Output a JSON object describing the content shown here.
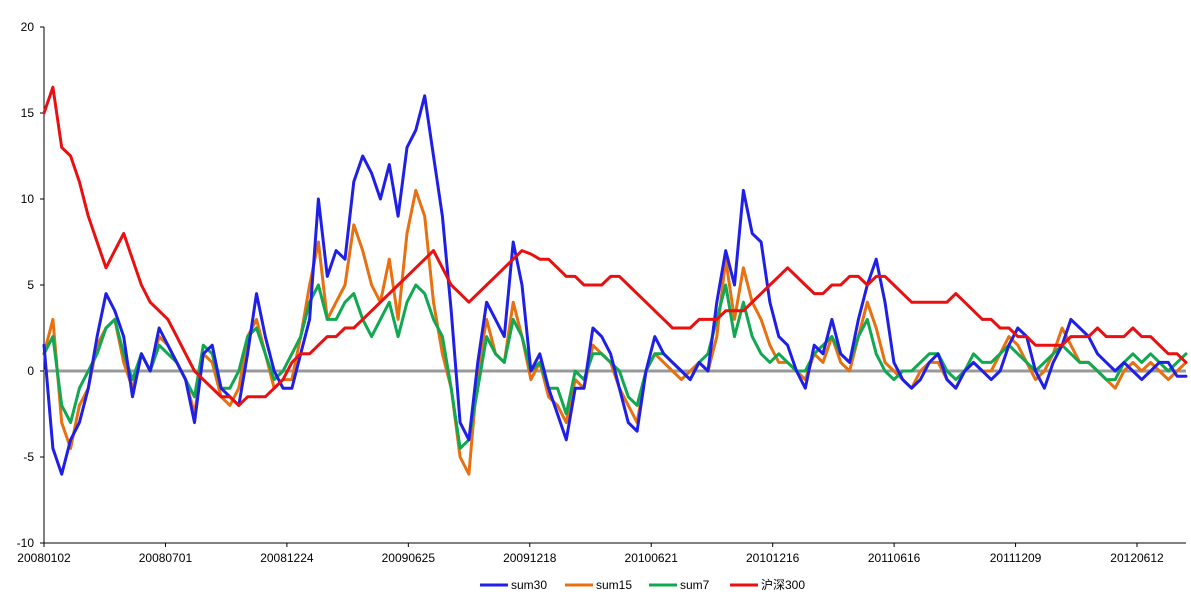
{
  "chart_data": {
    "type": "line",
    "title": "",
    "xlabel": "",
    "ylabel": "",
    "ylim": [
      -10,
      20
    ],
    "yticks": [
      -10,
      -5,
      0,
      5,
      10,
      15,
      20
    ],
    "x_tick_labels": [
      "20080102",
      "20080701",
      "20081224",
      "20090625",
      "20091218",
      "20100621",
      "20101216",
      "20110616",
      "20111209",
      "20120612"
    ],
    "grid": false,
    "legend_position": "bottom",
    "zero_line_color": "#999999",
    "series": [
      {
        "name": "sum30",
        "color": "#1f1fe8",
        "values": [
          1.5,
          -4.5,
          -6.0,
          -4.0,
          -3.0,
          -1.0,
          2.0,
          4.5,
          3.5,
          2.0,
          -1.5,
          1.0,
          0.0,
          2.5,
          1.5,
          0.5,
          -0.5,
          -3.0,
          1.0,
          1.5,
          -1.0,
          -1.5,
          -2.0,
          1.0,
          4.5,
          2.0,
          0.0,
          -1.0,
          -1.0,
          1.0,
          3.0,
          10.0,
          5.5,
          7.0,
          6.5,
          11.0,
          12.5,
          11.5,
          10.0,
          12.0,
          9.0,
          13.0,
          14.0,
          16.0,
          12.5,
          9.0,
          3.5,
          -3.0,
          -4.0,
          0.5,
          4.0,
          3.0,
          2.0,
          7.5,
          5.0,
          0.0,
          1.0,
          -1.0,
          -2.5,
          -4.0,
          -1.0,
          -1.0,
          2.5,
          2.0,
          1.0,
          -1.0,
          -3.0,
          -3.5,
          0.0,
          2.0,
          1.0,
          0.5,
          0.0,
          -0.5,
          0.5,
          0.0,
          4.0,
          7.0,
          5.0,
          10.5,
          8.0,
          7.5,
          4.0,
          2.0,
          1.5,
          0.0,
          -1.0,
          1.5,
          1.0,
          3.0,
          1.0,
          0.5,
          3.0,
          5.0,
          6.5,
          4.0,
          0.5,
          -0.5,
          -1.0,
          -0.5,
          0.5,
          1.0,
          -0.5,
          -1.0,
          0.0,
          0.5,
          0.0,
          -0.5,
          0.0,
          1.5,
          2.5,
          2.0,
          0.0,
          -1.0,
          0.5,
          1.5,
          3.0,
          2.5,
          2.0,
          1.0,
          0.5,
          0.0,
          0.5,
          0.0,
          -0.5,
          0.0,
          0.5,
          0.5,
          -0.3,
          -0.3
        ]
      },
      {
        "name": "sum15",
        "color": "#e87010",
        "values": [
          1.0,
          3.0,
          -3.0,
          -4.5,
          -2.0,
          -1.0,
          1.5,
          2.5,
          3.0,
          0.5,
          -1.0,
          1.0,
          0.0,
          2.0,
          1.5,
          0.5,
          -0.5,
          -2.5,
          1.0,
          0.5,
          -1.5,
          -2.0,
          -1.0,
          2.0,
          3.0,
          1.0,
          -1.0,
          -0.5,
          -0.5,
          2.0,
          5.0,
          7.5,
          3.0,
          4.0,
          5.0,
          8.5,
          7.0,
          5.0,
          4.0,
          6.5,
          3.0,
          8.0,
          10.5,
          9.0,
          4.0,
          1.0,
          -1.0,
          -5.0,
          -6.0,
          0.0,
          3.0,
          1.0,
          0.5,
          4.0,
          2.0,
          -0.5,
          0.5,
          -1.5,
          -2.0,
          -3.0,
          -0.5,
          -1.0,
          1.5,
          1.0,
          0.5,
          -1.0,
          -2.0,
          -3.0,
          0.0,
          1.0,
          0.5,
          0.0,
          -0.5,
          0.0,
          0.5,
          0.0,
          2.0,
          6.5,
          3.0,
          6.0,
          4.0,
          3.0,
          1.5,
          0.5,
          0.5,
          0.0,
          -0.5,
          1.0,
          0.5,
          2.0,
          0.5,
          0.0,
          2.0,
          4.0,
          2.5,
          0.5,
          0.0,
          -0.5,
          -1.0,
          0.0,
          0.5,
          0.5,
          -0.5,
          -1.0,
          0.0,
          0.5,
          0.0,
          0.0,
          1.0,
          2.0,
          1.5,
          0.5,
          -0.5,
          0.0,
          1.0,
          2.5,
          1.5,
          0.5,
          0.5,
          0.0,
          -0.5,
          -1.0,
          0.0,
          0.5,
          0.0,
          0.5,
          0.0,
          -0.5,
          0.0,
          0.5
        ]
      },
      {
        "name": "sum7",
        "color": "#10a850",
        "values": [
          1.0,
          2.0,
          -2.0,
          -3.0,
          -1.0,
          0.0,
          1.0,
          2.5,
          3.0,
          1.0,
          -0.5,
          1.0,
          0.0,
          1.5,
          1.0,
          0.5,
          -0.5,
          -1.5,
          1.5,
          1.0,
          -1.0,
          -1.0,
          0.0,
          2.0,
          2.5,
          1.0,
          -0.5,
          0.0,
          1.0,
          2.0,
          4.0,
          5.0,
          3.0,
          3.0,
          4.0,
          4.5,
          3.0,
          2.0,
          3.0,
          4.0,
          2.0,
          4.0,
          5.0,
          4.5,
          3.0,
          2.0,
          -1.0,
          -4.5,
          -4.0,
          -1.0,
          2.0,
          1.0,
          0.5,
          3.0,
          2.0,
          0.0,
          0.5,
          -1.0,
          -1.0,
          -2.5,
          0.0,
          -0.5,
          1.0,
          1.0,
          0.5,
          0.0,
          -1.5,
          -2.0,
          0.0,
          1.0,
          1.0,
          0.5,
          0.0,
          -0.5,
          0.5,
          1.0,
          3.0,
          5.0,
          2.0,
          4.0,
          2.0,
          1.0,
          0.5,
          1.0,
          0.5,
          0.0,
          0.0,
          1.0,
          1.5,
          2.0,
          1.0,
          0.5,
          2.0,
          3.0,
          1.0,
          0.0,
          -0.5,
          0.0,
          0.0,
          0.5,
          1.0,
          1.0,
          0.0,
          -0.5,
          0.0,
          1.0,
          0.5,
          0.5,
          1.0,
          1.5,
          1.0,
          0.5,
          0.0,
          0.5,
          1.0,
          1.5,
          1.0,
          0.5,
          0.5,
          0.0,
          -0.5,
          -0.5,
          0.5,
          1.0,
          0.5,
          1.0,
          0.5,
          0.0,
          0.5,
          1.0
        ]
      },
      {
        "name": "沪深300",
        "color": "#e81010",
        "values": [
          15.0,
          16.5,
          13.0,
          12.5,
          11.0,
          9.0,
          7.5,
          6.0,
          7.0,
          8.0,
          6.5,
          5.0,
          4.0,
          3.5,
          3.0,
          2.0,
          1.0,
          0.0,
          -0.5,
          -1.0,
          -1.5,
          -1.5,
          -2.0,
          -1.5,
          -1.5,
          -1.5,
          -1.0,
          -0.5,
          0.5,
          1.0,
          1.0,
          1.5,
          2.0,
          2.0,
          2.5,
          2.5,
          3.0,
          3.5,
          4.0,
          4.5,
          5.0,
          5.5,
          6.0,
          6.5,
          7.0,
          6.0,
          5.0,
          4.5,
          4.0,
          4.5,
          5.0,
          5.5,
          6.0,
          6.5,
          7.0,
          6.8,
          6.5,
          6.5,
          6.0,
          5.5,
          5.5,
          5.0,
          5.0,
          5.0,
          5.5,
          5.5,
          5.0,
          4.5,
          4.0,
          3.5,
          3.0,
          2.5,
          2.5,
          2.5,
          3.0,
          3.0,
          3.0,
          3.5,
          3.5,
          3.5,
          4.0,
          4.5,
          5.0,
          5.5,
          6.0,
          5.5,
          5.0,
          4.5,
          4.5,
          5.0,
          5.0,
          5.5,
          5.5,
          5.0,
          5.5,
          5.5,
          5.0,
          4.5,
          4.0,
          4.0,
          4.0,
          4.0,
          4.0,
          4.5,
          4.0,
          3.5,
          3.0,
          3.0,
          2.5,
          2.5,
          2.0,
          2.0,
          1.5,
          1.5,
          1.5,
          1.5,
          2.0,
          2.0,
          2.0,
          2.5,
          2.0,
          2.0,
          2.0,
          2.5,
          2.0,
          2.0,
          1.5,
          1.0,
          1.0,
          0.5
        ]
      }
    ]
  }
}
